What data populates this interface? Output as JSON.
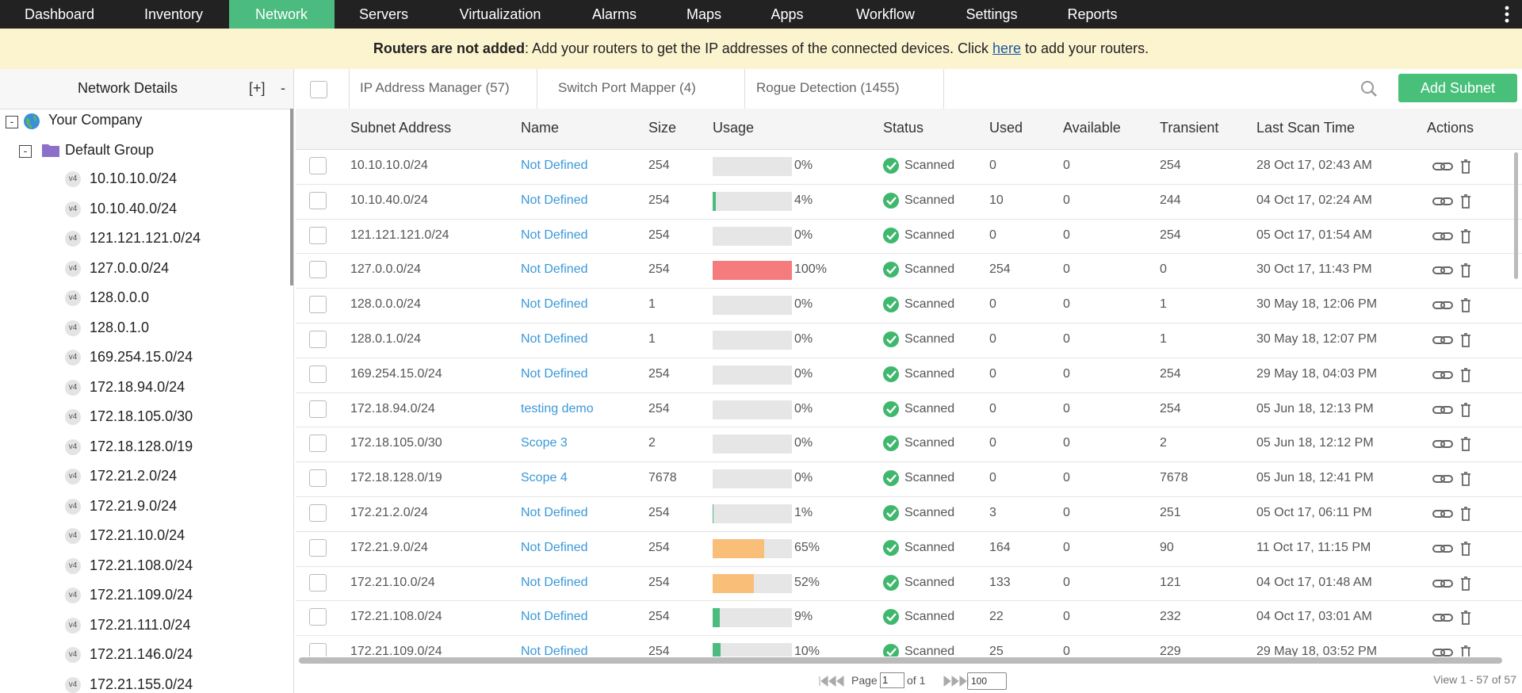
{
  "nav": {
    "items": [
      "Dashboard",
      "Inventory",
      "Network",
      "Servers",
      "Virtualization",
      "Alarms",
      "Maps",
      "Apps",
      "Workflow",
      "Settings",
      "Reports"
    ],
    "active": 2
  },
  "banner": {
    "bold": "Routers are not added",
    "text": ": Add your routers to get the IP addresses of the connected devices. Click ",
    "link": "here",
    "text_end": " to add your routers."
  },
  "sidebar": {
    "title": "Network Details",
    "expand": "[+]",
    "collapse": "-",
    "tree_toggle": "-",
    "company": "Your Company",
    "group": "Default Group",
    "badge": "v4",
    "subnets": [
      "10.10.10.0/24",
      "10.10.40.0/24",
      "121.121.121.0/24",
      "127.0.0.0/24",
      "128.0.0.0",
      "128.0.1.0",
      "169.254.15.0/24",
      "172.18.94.0/24",
      "172.18.105.0/30",
      "172.18.128.0/19",
      "172.21.2.0/24",
      "172.21.9.0/24",
      "172.21.10.0/24",
      "172.21.108.0/24",
      "172.21.109.0/24",
      "172.21.111.0/24",
      "172.21.146.0/24",
      "172.21.155.0/24"
    ]
  },
  "tabs": [
    "IP Address Manager (57)",
    "Switch Port Mapper (4)",
    "Rogue Detection (1455)"
  ],
  "add_button": "Add Subnet",
  "table": {
    "columns": [
      "Subnet Address",
      "Name",
      "Size",
      "Usage",
      "Status",
      "Used",
      "Available",
      "Transient",
      "Last Scan Time",
      "Actions"
    ],
    "rows": [
      [
        "10.10.10.0/24",
        "Not Defined",
        254,
        "0%",
        "Scanned",
        0,
        0,
        254,
        "28 Oct 17, 02:43 AM"
      ],
      [
        "10.10.40.0/24",
        "Not Defined",
        254,
        "4%",
        "Scanned",
        10,
        0,
        244,
        "04 Oct 17, 02:24 AM"
      ],
      [
        "121.121.121.0/24",
        "Not Defined",
        254,
        "0%",
        "Scanned",
        0,
        0,
        254,
        "05 Oct 17, 01:54 AM"
      ],
      [
        "127.0.0.0/24",
        "Not Defined",
        254,
        "100%",
        "Scanned",
        254,
        0,
        0,
        "30 Oct 17, 11:43 PM"
      ],
      [
        "128.0.0.0/24",
        "Not Defined",
        1,
        "0%",
        "Scanned",
        0,
        0,
        1,
        "30 May 18, 12:06 PM"
      ],
      [
        "128.0.1.0/24",
        "Not Defined",
        1,
        "0%",
        "Scanned",
        0,
        0,
        1,
        "30 May 18, 12:07 PM"
      ],
      [
        "169.254.15.0/24",
        "Not Defined",
        254,
        "0%",
        "Scanned",
        0,
        0,
        254,
        "29 May 18, 04:03 PM"
      ],
      [
        "172.18.94.0/24",
        "testing demo",
        254,
        "0%",
        "Scanned",
        0,
        0,
        254,
        "05 Jun 18, 12:13 PM"
      ],
      [
        "172.18.105.0/30",
        "Scope 3",
        2,
        "0%",
        "Scanned",
        0,
        0,
        2,
        "05 Jun 18, 12:12 PM"
      ],
      [
        "172.18.128.0/19",
        "Scope 4",
        7678,
        "0%",
        "Scanned",
        0,
        0,
        7678,
        "05 Jun 18, 12:41 PM"
      ],
      [
        "172.21.2.0/24",
        "Not Defined",
        254,
        "1%",
        "Scanned",
        3,
        0,
        251,
        "05 Oct 17, 06:11 PM"
      ],
      [
        "172.21.9.0/24",
        "Not Defined",
        254,
        "65%",
        "Scanned",
        164,
        0,
        90,
        "11 Oct 17, 11:15 PM"
      ],
      [
        "172.21.10.0/24",
        "Not Defined",
        254,
        "52%",
        "Scanned",
        133,
        0,
        121,
        "04 Oct 17, 01:48 AM"
      ],
      [
        "172.21.108.0/24",
        "Not Defined",
        254,
        "9%",
        "Scanned",
        22,
        0,
        232,
        "04 Oct 17, 03:01 AM"
      ],
      [
        "172.21.109.0/24",
        "Not Defined",
        254,
        "10%",
        "Scanned",
        25,
        0,
        229,
        "29 May 18, 03:52 PM"
      ]
    ]
  },
  "pagination": {
    "page": "Page",
    "current": "1",
    "of": "of 1",
    "per_page": "100",
    "view": "View 1 - 57 of 57"
  }
}
